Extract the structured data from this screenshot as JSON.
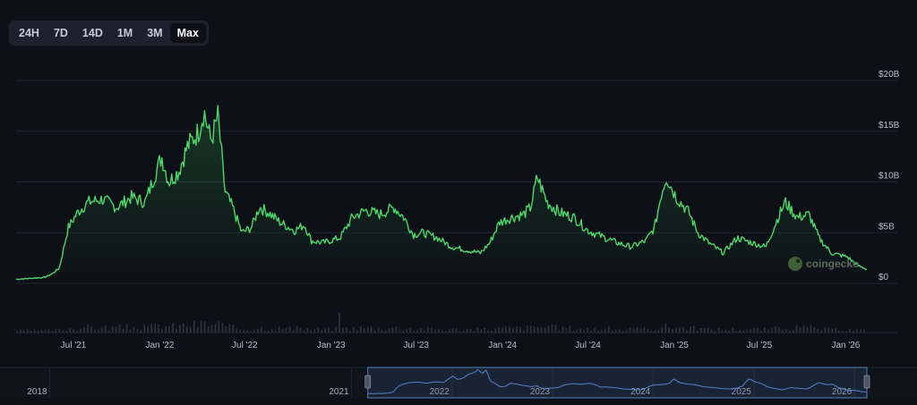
{
  "range_selector": {
    "buttons": [
      "24H",
      "7D",
      "14D",
      "1M",
      "3M",
      "Max"
    ],
    "active": "Max"
  },
  "watermark": "coingecko",
  "chart_data": {
    "type": "area",
    "x_unit": "date",
    "y_unit": "USD",
    "ylim": [
      0,
      20000000000
    ],
    "y_tick_labels": [
      "$0",
      "$5B",
      "$10B",
      "$15B",
      "$20B"
    ],
    "y_tick_values": [
      0,
      5000000000,
      10000000000,
      15000000000,
      20000000000
    ],
    "x_tick_labels": [
      "Jul '21",
      "Jan '22",
      "Jul '22",
      "Jan '23",
      "Jul '23",
      "Jan '24",
      "Jul '24",
      "Jan '25",
      "Jul '25",
      "Jan '26"
    ],
    "x_tick_dates": [
      "2021-07-01",
      "2022-01-01",
      "2022-07-01",
      "2023-01-01",
      "2023-07-01",
      "2024-01-01",
      "2024-07-01",
      "2025-01-01",
      "2025-07-01",
      "2026-01-01"
    ],
    "xlim": [
      "2021-03-01",
      "2026-02-15"
    ],
    "grid": true,
    "series": [
      {
        "color": "#4fd66a",
        "points": [
          [
            "2021-03-01",
            0.4
          ],
          [
            "2021-04-01",
            0.5
          ],
          [
            "2021-05-01",
            0.6
          ],
          [
            "2021-05-15",
            0.9
          ],
          [
            "2021-06-01",
            1.5
          ],
          [
            "2021-06-20",
            5.5
          ],
          [
            "2021-07-10",
            7.0
          ],
          [
            "2021-08-01",
            8.0
          ],
          [
            "2021-09-01",
            8.3
          ],
          [
            "2021-10-01",
            7.5
          ],
          [
            "2021-11-01",
            8.5
          ],
          [
            "2021-12-01",
            8.0
          ],
          [
            "2021-12-20",
            10.5
          ],
          [
            "2022-01-05",
            12.5
          ],
          [
            "2022-01-20",
            10.0
          ],
          [
            "2022-02-10",
            11.0
          ],
          [
            "2022-03-01",
            13.5
          ],
          [
            "2022-03-25",
            15.0
          ],
          [
            "2022-04-05",
            17.0
          ],
          [
            "2022-04-20",
            14.0
          ],
          [
            "2022-05-05",
            16.5
          ],
          [
            "2022-05-20",
            9.0
          ],
          [
            "2022-06-05",
            7.5
          ],
          [
            "2022-06-25",
            5.0
          ],
          [
            "2022-07-15",
            5.5
          ],
          [
            "2022-08-01",
            7.5
          ],
          [
            "2022-08-20",
            7.0
          ],
          [
            "2022-09-15",
            6.0
          ],
          [
            "2022-10-15",
            5.2
          ],
          [
            "2022-11-05",
            5.8
          ],
          [
            "2022-11-20",
            4.2
          ],
          [
            "2022-12-15",
            4.0
          ],
          [
            "2023-01-20",
            4.5
          ],
          [
            "2023-02-15",
            6.5
          ],
          [
            "2023-03-15",
            7.2
          ],
          [
            "2023-04-15",
            6.8
          ],
          [
            "2023-05-15",
            7.5
          ],
          [
            "2023-06-05",
            6.5
          ],
          [
            "2023-06-25",
            4.8
          ],
          [
            "2023-07-15",
            5.0
          ],
          [
            "2023-08-15",
            4.5
          ],
          [
            "2023-09-15",
            3.6
          ],
          [
            "2023-10-15",
            3.3
          ],
          [
            "2023-11-15",
            3.0
          ],
          [
            "2023-12-05",
            4.0
          ],
          [
            "2023-12-25",
            6.0
          ],
          [
            "2024-01-20",
            6.5
          ],
          [
            "2024-02-15",
            6.8
          ],
          [
            "2024-03-01",
            7.5
          ],
          [
            "2024-03-15",
            10.5
          ],
          [
            "2024-04-05",
            8.0
          ],
          [
            "2024-05-01",
            7.0
          ],
          [
            "2024-06-01",
            6.5
          ],
          [
            "2024-07-01",
            5.2
          ],
          [
            "2024-08-01",
            4.6
          ],
          [
            "2024-09-01",
            4.0
          ],
          [
            "2024-10-01",
            3.6
          ],
          [
            "2024-11-01",
            4.2
          ],
          [
            "2024-11-20",
            5.5
          ],
          [
            "2024-12-05",
            9.0
          ],
          [
            "2024-12-15",
            10.5
          ],
          [
            "2025-01-05",
            8.5
          ],
          [
            "2025-02-01",
            7.0
          ],
          [
            "2025-02-20",
            5.0
          ],
          [
            "2025-03-15",
            4.0
          ],
          [
            "2025-04-15",
            3.0
          ],
          [
            "2025-05-15",
            4.5
          ],
          [
            "2025-06-15",
            4.0
          ],
          [
            "2025-07-15",
            3.6
          ],
          [
            "2025-08-10",
            6.5
          ],
          [
            "2025-08-25",
            8.0
          ],
          [
            "2025-09-20",
            6.5
          ],
          [
            "2025-10-15",
            6.8
          ],
          [
            "2025-11-05",
            4.5
          ],
          [
            "2025-12-01",
            3.0
          ],
          [
            "2026-01-05",
            2.6
          ],
          [
            "2026-01-25",
            1.8
          ],
          [
            "2026-02-15",
            1.4
          ]
        ]
      }
    ],
    "navigator": {
      "x_tick_labels": [
        "2018",
        "2021",
        "2022",
        "2023",
        "2024",
        "2025",
        "2026"
      ],
      "x_tick_dates": [
        "2018-01-01",
        "2021-01-01",
        "2022-01-01",
        "2023-01-01",
        "2024-01-01",
        "2025-01-01",
        "2026-01-01"
      ],
      "xlim": [
        "2017-09-01",
        "2026-02-15"
      ],
      "selection": [
        "2021-03-01",
        "2026-02-15"
      ]
    }
  }
}
